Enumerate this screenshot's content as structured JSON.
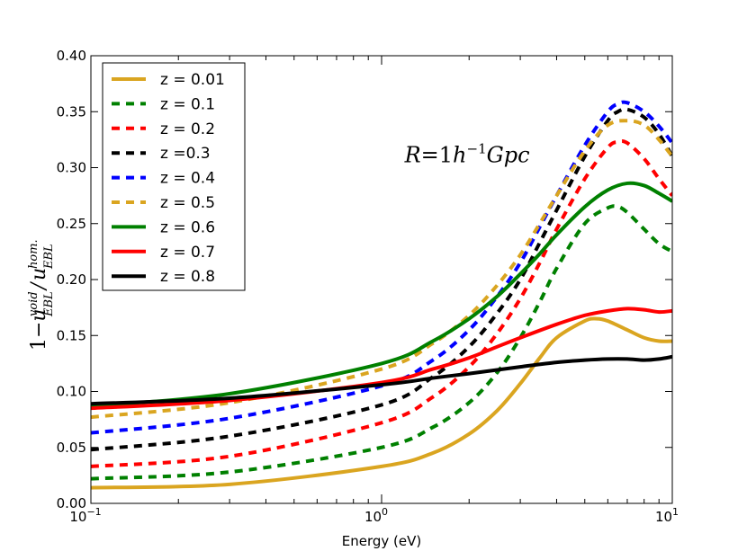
{
  "chart_data": {
    "type": "line",
    "title": "",
    "xlabel": "Energy (eV)",
    "ylabel": "1−u_EBL^void/u_EBL^hom.",
    "ylabel_parts": {
      "prefix": "1",
      "minus": "−",
      "u1": "u",
      "u1_sup": "void",
      "u1_sub": "EBL",
      "slash": "/",
      "u2": "u",
      "u2_sup": "hom.",
      "u2_sub": "EBL"
    },
    "xscale": "log",
    "xlim": [
      0.1,
      10
    ],
    "ylim": [
      0.0,
      0.4
    ],
    "x_tick_labels": [
      {
        "base": "10",
        "exp": "−1",
        "value": 0.1
      },
      {
        "base": "10",
        "exp": "0",
        "value": 1
      },
      {
        "base": "10",
        "exp": "1",
        "value": 10
      }
    ],
    "y_ticks": [
      0.0,
      0.05,
      0.1,
      0.15,
      0.2,
      0.25,
      0.3,
      0.35,
      0.4
    ],
    "y_tick_labels": [
      "0.00",
      "0.05",
      "0.10",
      "0.15",
      "0.20",
      "0.25",
      "0.30",
      "0.35",
      "0.40"
    ],
    "grid": false,
    "legend_position": "top-left",
    "annotation": {
      "text": "R=1h⁻¹Gpc",
      "R": "R",
      "eq": "=1",
      "h": "h",
      "exp": "−1",
      "unit": "Gpc",
      "x": 1.2,
      "y": 0.305
    },
    "series": [
      {
        "name": "z = 0.01",
        "color": "#DAA520",
        "style": "solid",
        "x": [
          0.1,
          0.3,
          1,
          1.5,
          2,
          2.5,
          3,
          3.5,
          4,
          5,
          5.5,
          6,
          7,
          8,
          9,
          10
        ],
        "y": [
          0.014,
          0.017,
          0.033,
          0.045,
          0.062,
          0.083,
          0.107,
          0.13,
          0.148,
          0.163,
          0.165,
          0.163,
          0.155,
          0.148,
          0.145,
          0.145
        ]
      },
      {
        "name": "z = 0.1",
        "color": "#008000",
        "style": "dashed",
        "x": [
          0.1,
          0.3,
          1,
          1.5,
          2,
          2.5,
          3,
          3.5,
          4,
          5,
          6,
          6.5,
          7,
          8,
          9,
          10
        ],
        "y": [
          0.022,
          0.028,
          0.05,
          0.068,
          0.09,
          0.117,
          0.148,
          0.18,
          0.21,
          0.25,
          0.264,
          0.265,
          0.26,
          0.245,
          0.232,
          0.225
        ]
      },
      {
        "name": "z = 0.2",
        "color": "#FF0000",
        "style": "dashed",
        "x": [
          0.1,
          0.3,
          1,
          1.5,
          2,
          2.5,
          3,
          3.5,
          4,
          5,
          6,
          6.5,
          7,
          8,
          9,
          10
        ],
        "y": [
          0.033,
          0.042,
          0.072,
          0.095,
          0.122,
          0.152,
          0.183,
          0.215,
          0.245,
          0.29,
          0.318,
          0.323,
          0.322,
          0.308,
          0.29,
          0.275
        ]
      },
      {
        "name": "z =0.3",
        "color": "#000000",
        "style": "dashed",
        "x": [
          0.1,
          0.3,
          1,
          1.5,
          2,
          2.5,
          3,
          3.5,
          4,
          5,
          6,
          6.5,
          7,
          8,
          9,
          10
        ],
        "y": [
          0.048,
          0.06,
          0.088,
          0.113,
          0.14,
          0.17,
          0.2,
          0.233,
          0.262,
          0.31,
          0.342,
          0.35,
          0.352,
          0.345,
          0.33,
          0.31
        ]
      },
      {
        "name": "z = 0.4",
        "color": "#0000FF",
        "style": "dashed",
        "x": [
          0.1,
          0.3,
          1,
          1.5,
          2,
          2.5,
          3,
          3.5,
          4,
          5,
          6,
          6.5,
          7,
          8,
          9,
          10
        ],
        "y": [
          0.063,
          0.076,
          0.105,
          0.128,
          0.155,
          0.185,
          0.215,
          0.247,
          0.275,
          0.32,
          0.35,
          0.357,
          0.358,
          0.35,
          0.337,
          0.322
        ]
      },
      {
        "name": "z = 0.5",
        "color": "#DAA520",
        "style": "dashed",
        "x": [
          0.1,
          0.3,
          1,
          1.5,
          2,
          2.5,
          3,
          3.5,
          4,
          5,
          6,
          7,
          8,
          9,
          10
        ],
        "y": [
          0.077,
          0.09,
          0.12,
          0.143,
          0.168,
          0.195,
          0.222,
          0.25,
          0.275,
          0.315,
          0.338,
          0.342,
          0.338,
          0.325,
          0.31
        ]
      },
      {
        "name": "z = 0.6",
        "color": "#008000",
        "style": "solid",
        "x": [
          0.1,
          0.3,
          1,
          1.5,
          2,
          2.5,
          3,
          3.5,
          4,
          5,
          6,
          7,
          8,
          9,
          10
        ],
        "y": [
          0.087,
          0.098,
          0.125,
          0.145,
          0.165,
          0.185,
          0.205,
          0.223,
          0.24,
          0.265,
          0.28,
          0.286,
          0.284,
          0.277,
          0.27
        ]
      },
      {
        "name": "z = 0.7",
        "color": "#FF0000",
        "style": "solid",
        "x": [
          0.1,
          0.3,
          1,
          1.5,
          2,
          2.5,
          3,
          4,
          5,
          6,
          7,
          8,
          9,
          10
        ],
        "y": [
          0.085,
          0.092,
          0.108,
          0.12,
          0.13,
          0.14,
          0.148,
          0.16,
          0.168,
          0.172,
          0.174,
          0.173,
          0.171,
          0.172
        ]
      },
      {
        "name": "z = 0.8",
        "color": "#000000",
        "style": "solid",
        "x": [
          0.1,
          0.3,
          1,
          1.5,
          2,
          3,
          4,
          5,
          6,
          7,
          8,
          9,
          10
        ],
        "y": [
          0.089,
          0.094,
          0.106,
          0.112,
          0.116,
          0.122,
          0.126,
          0.128,
          0.129,
          0.129,
          0.128,
          0.129,
          0.131
        ]
      }
    ]
  }
}
